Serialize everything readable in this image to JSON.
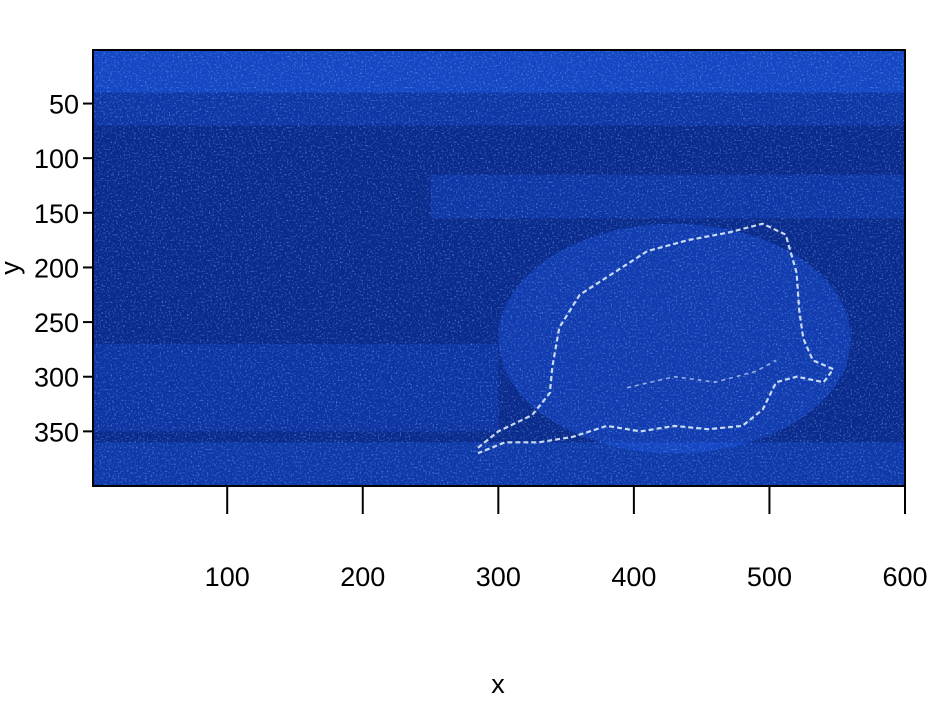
{
  "chart_data": {
    "type": "heatmap",
    "title": "",
    "xlabel": "x",
    "ylabel": "y",
    "xlim": [
      1,
      600
    ],
    "ylim": [
      1,
      400
    ],
    "y_reversed": true,
    "x_ticks": [
      100,
      200,
      300,
      400,
      500,
      600
    ],
    "y_ticks": [
      50,
      100,
      150,
      200,
      250,
      300,
      350
    ],
    "grid": false,
    "legend": "none",
    "color_scale": {
      "low": "#0a2a8c",
      "mid": "#1f5cf0",
      "high": "#e9f6ff"
    },
    "description_of_values": "gradient-magnitude style intensity map; bright edge outline of an animal-shaped figure spanning roughly x 285-550, y 160-370"
  }
}
